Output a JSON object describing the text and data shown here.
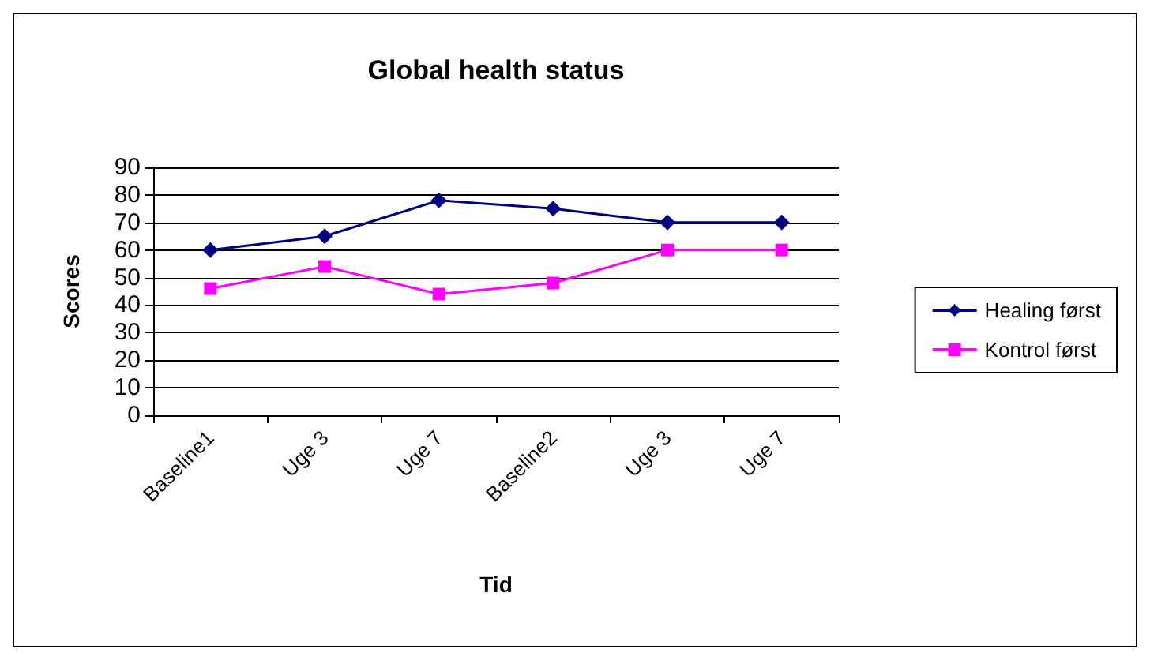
{
  "chart_data": {
    "type": "line",
    "title": "Global health status",
    "xlabel": "Tid",
    "ylabel": "Scores",
    "categories": [
      "Baseline1",
      "Uge 3",
      "Uge 7",
      "Baseline2",
      "Uge 3",
      "Uge 7"
    ],
    "series": [
      {
        "name": "Healing først",
        "color": "#000080",
        "marker": "diamond",
        "values": [
          60,
          65,
          78,
          75,
          70,
          70
        ]
      },
      {
        "name": "Kontrol først",
        "color": "#ff00ff",
        "marker": "square",
        "values": [
          46,
          54,
          44,
          48,
          60,
          60
        ]
      }
    ],
    "ylim": [
      0,
      90
    ],
    "yticks": [
      0,
      10,
      20,
      30,
      40,
      50,
      60,
      70,
      80,
      90
    ],
    "grid": "y",
    "legend": "right",
    "line_style": "solid"
  }
}
